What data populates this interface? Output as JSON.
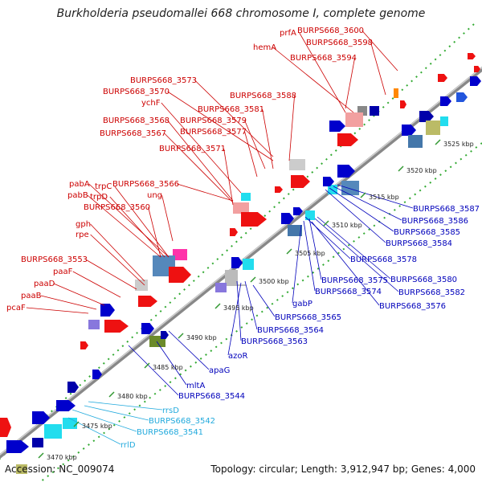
{
  "title": "Burkholderia pseudomallei 668 chromosome I, complete genome",
  "footer": {
    "accession": "Accession: NC_009074",
    "summary": "Topology: circular; Length: 3,912,947 bp; Genes: 4,000"
  },
  "scale_labels": [
    "3525 kbp",
    "3520 kbp",
    "3515 kbp",
    "3510 kbp",
    "3505 kbp",
    "3500 kbp",
    "3495 kbp",
    "3490 kbp",
    "3485 kbp",
    "3480 kbp",
    "3475 kbp",
    "3470 kbp"
  ],
  "labels_forward": [
    "prfA",
    "BURPS668_3600",
    "BURPS668_3598",
    "hemA",
    "BURPS668_3594",
    "BURPS668_3573",
    "BURPS668_3570",
    "BURPS668_3588",
    "ychF",
    "BURPS668_3581",
    "BURPS668_3568",
    "BURPS668_3579",
    "BURPS668_3567",
    "BURPS668_3577",
    "BURPS668_3571",
    "pabA",
    "trpC",
    "BURPS668_3566",
    "pabB",
    "trpD",
    "ung",
    "BURPS668_3560",
    "gph",
    "rpe",
    "BURPS668_3553",
    "paaF",
    "paaD",
    "paaB",
    "pcaF"
  ],
  "labels_reverse": [
    "BURPS668_3587",
    "BURPS668_3586",
    "BURPS668_3585",
    "BURPS668_3584",
    "BURPS668_3578",
    "BURPS668_3580",
    "BURPS668_3575",
    "BURPS668_3582",
    "BURPS668_3574",
    "BURPS668_3576",
    "gabP",
    "BURPS668_3565",
    "BURPS668_3564",
    "BURPS668_3563",
    "azoR",
    "apaG",
    "mltA",
    "BURPS668_3544"
  ],
  "labels_rna": [
    "rrsD",
    "BURPS668_3542",
    "BURPS668_3541",
    "rrlD"
  ],
  "colors": {
    "forward_label": "#cc0000",
    "reverse_label": "#0000bb",
    "rna_label": "#22aadd",
    "backbone": "#999999",
    "tick": "#339933"
  }
}
